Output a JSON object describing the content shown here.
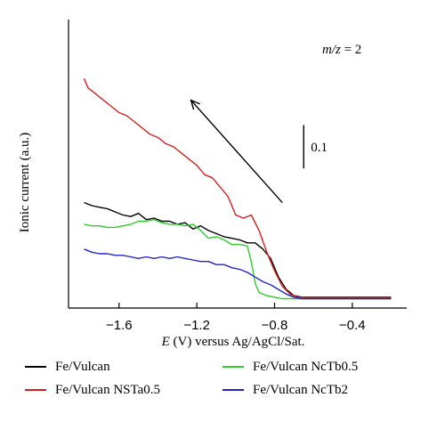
{
  "chart_data": {
    "type": "line",
    "xlabel_var": "E",
    "xlabel_rest": " (V) versus Ag/AgCl/Sat.",
    "ylabel": "Ionic current (a.u.)",
    "annotation": "0.1",
    "mz_label_var": "m/z",
    "mz_label_rest": " = 2",
    "xlim": [
      -1.86,
      -0.12
    ],
    "ylim": [
      0.0,
      0.93
    ],
    "x_ticks": [
      -1.6,
      -1.2,
      -0.8,
      -0.4
    ],
    "x_tick_labels": [
      "−1.6",
      "−1.2",
      "−0.8",
      "−0.4"
    ],
    "scale_bar": {
      "x": -0.65,
      "y0": 0.45,
      "y1": 0.59
    },
    "arrow": {
      "from": [
        -0.76,
        0.34
      ],
      "to": [
        -1.23,
        0.67
      ]
    },
    "series": [
      {
        "name": "Fe/Vulcan",
        "color": "#000000",
        "x": [
          -1.78,
          -1.74,
          -1.7,
          -1.66,
          -1.62,
          -1.58,
          -1.54,
          -1.5,
          -1.46,
          -1.42,
          -1.38,
          -1.34,
          -1.3,
          -1.26,
          -1.22,
          -1.18,
          -1.14,
          -1.1,
          -1.06,
          -1.02,
          -0.98,
          -0.94,
          -0.9,
          -0.86,
          -0.82,
          -0.78,
          -0.74,
          -0.7,
          -0.66,
          -0.62,
          -0.58,
          -0.5,
          -0.4,
          -0.3,
          -0.2
        ],
        "y": [
          0.34,
          0.33,
          0.325,
          0.32,
          0.31,
          0.3,
          0.295,
          0.305,
          0.285,
          0.29,
          0.28,
          0.28,
          0.27,
          0.275,
          0.255,
          0.265,
          0.25,
          0.24,
          0.23,
          0.225,
          0.22,
          0.21,
          0.21,
          0.19,
          0.16,
          0.1,
          0.06,
          0.04,
          0.035,
          0.035,
          0.035,
          0.035,
          0.035,
          0.035,
          0.035
        ]
      },
      {
        "name": "Fe/Vulcan NSTa0.5",
        "color": "#d62020",
        "x": [
          -1.78,
          -1.76,
          -1.72,
          -1.68,
          -1.64,
          -1.6,
          -1.56,
          -1.52,
          -1.48,
          -1.44,
          -1.4,
          -1.36,
          -1.32,
          -1.28,
          -1.24,
          -1.2,
          -1.16,
          -1.12,
          -1.08,
          -1.04,
          -1.0,
          -0.96,
          -0.92,
          -0.88,
          -0.84,
          -0.8,
          -0.76,
          -0.72,
          -0.68,
          -0.64,
          -0.6,
          -0.5,
          -0.4,
          -0.3,
          -0.2
        ],
        "y": [
          0.74,
          0.71,
          0.69,
          0.67,
          0.65,
          0.63,
          0.62,
          0.6,
          0.58,
          0.56,
          0.55,
          0.53,
          0.52,
          0.5,
          0.48,
          0.46,
          0.43,
          0.42,
          0.39,
          0.36,
          0.3,
          0.29,
          0.3,
          0.25,
          0.18,
          0.12,
          0.07,
          0.045,
          0.035,
          0.033,
          0.033,
          0.033,
          0.033,
          0.033,
          0.033
        ]
      },
      {
        "name": "Fe/Vulcan NcTb0.5",
        "color": "#2ecc2e",
        "x": [
          -1.78,
          -1.74,
          -1.7,
          -1.66,
          -1.62,
          -1.58,
          -1.54,
          -1.5,
          -1.46,
          -1.42,
          -1.38,
          -1.34,
          -1.3,
          -1.26,
          -1.22,
          -1.18,
          -1.14,
          -1.1,
          -1.06,
          -1.02,
          -0.98,
          -0.94,
          -0.92,
          -0.9,
          -0.88,
          -0.84,
          -0.8,
          -0.76,
          -0.72,
          -0.68,
          -0.64,
          -0.6,
          -0.5,
          -0.4,
          -0.3,
          -0.2
        ],
        "y": [
          0.27,
          0.265,
          0.265,
          0.26,
          0.26,
          0.265,
          0.27,
          0.28,
          0.28,
          0.285,
          0.275,
          0.27,
          0.27,
          0.265,
          0.27,
          0.25,
          0.225,
          0.23,
          0.22,
          0.205,
          0.205,
          0.2,
          0.15,
          0.08,
          0.05,
          0.04,
          0.035,
          0.03,
          0.03,
          0.03,
          0.03,
          0.03,
          0.03,
          0.03,
          0.03,
          0.03
        ]
      },
      {
        "name": "Fe/Vulcan NcTb2",
        "color": "#2222c8",
        "x": [
          -1.78,
          -1.74,
          -1.7,
          -1.66,
          -1.62,
          -1.58,
          -1.54,
          -1.5,
          -1.46,
          -1.42,
          -1.38,
          -1.34,
          -1.3,
          -1.26,
          -1.22,
          -1.18,
          -1.14,
          -1.1,
          -1.06,
          -1.02,
          -0.98,
          -0.94,
          -0.9,
          -0.86,
          -0.82,
          -0.78,
          -0.74,
          -0.7,
          -0.66,
          -0.62,
          -0.58,
          -0.5,
          -0.4,
          -0.3,
          -0.2
        ],
        "y": [
          0.19,
          0.18,
          0.175,
          0.175,
          0.17,
          0.17,
          0.165,
          0.16,
          0.165,
          0.16,
          0.165,
          0.16,
          0.165,
          0.16,
          0.155,
          0.15,
          0.15,
          0.14,
          0.14,
          0.13,
          0.125,
          0.115,
          0.1,
          0.085,
          0.075,
          0.06,
          0.045,
          0.035,
          0.03,
          0.03,
          0.03,
          0.03,
          0.03,
          0.03,
          0.03
        ]
      }
    ]
  }
}
